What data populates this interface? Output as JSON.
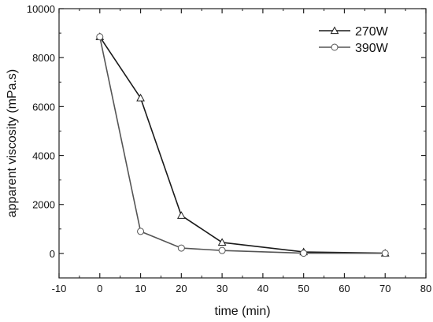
{
  "chart_data": {
    "type": "line",
    "xlabel": "time (min)",
    "ylabel": "apparent viscosity (mPa.s)",
    "xlim": [
      -10,
      80
    ],
    "ylim": [
      -1000,
      10000
    ],
    "x_ticks": [
      -10,
      0,
      10,
      20,
      30,
      40,
      50,
      60,
      70,
      80
    ],
    "y_ticks": [
      0,
      2000,
      4000,
      6000,
      8000,
      10000
    ],
    "x_tick_labels": [
      "-10",
      "0",
      "10",
      "20",
      "30",
      "40",
      "50",
      "60",
      "70",
      "80"
    ],
    "y_tick_labels": [
      "0",
      "2000",
      "4000",
      "6000",
      "8000",
      "10000"
    ],
    "grid": false,
    "legend_position": "top-right",
    "series": [
      {
        "name": "270W",
        "marker": "triangle",
        "color": "#1a1a1a",
        "x": [
          0,
          10,
          20,
          30,
          50,
          70
        ],
        "y": [
          8850,
          6350,
          1550,
          450,
          60,
          10
        ]
      },
      {
        "name": "390W",
        "marker": "circle",
        "color": "#555555",
        "x": [
          0,
          10,
          20,
          30,
          50,
          70
        ],
        "y": [
          8850,
          900,
          220,
          120,
          10,
          5
        ]
      }
    ]
  }
}
